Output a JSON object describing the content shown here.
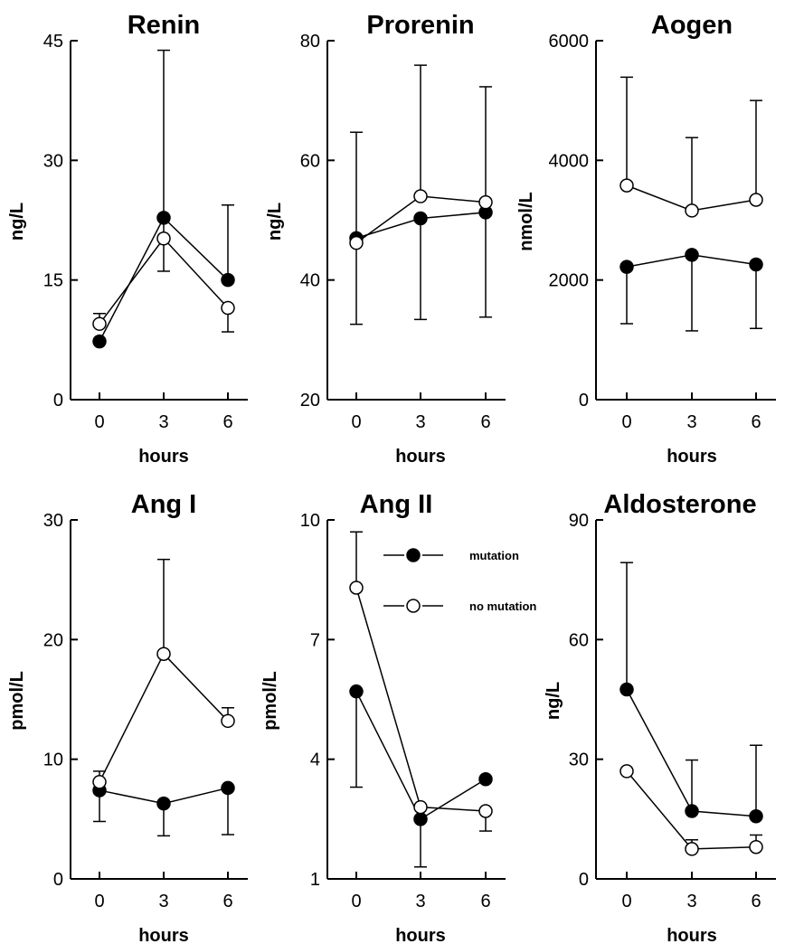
{
  "chart_data": [
    {
      "type": "line",
      "title": "Renin",
      "xlabel": "hours",
      "ylabel": "ng/L",
      "x": [
        0,
        3,
        6
      ],
      "xticks": [
        "0",
        "3",
        "6"
      ],
      "ylim": [
        0,
        45
      ],
      "yticks": [
        "0",
        "15",
        "30",
        "45"
      ],
      "series": [
        {
          "name": "mutation",
          "marker": "filled",
          "values": [
            7.3,
            22.8,
            15.0
          ],
          "err_upper": [
            null,
            null,
            24.4
          ],
          "err_lower": [
            null,
            null,
            null
          ]
        },
        {
          "name": "no mutation",
          "marker": "open",
          "values": [
            9.5,
            20.2,
            11.5
          ],
          "err_upper": [
            10.8,
            43.8,
            null
          ],
          "err_lower": [
            null,
            16.1,
            8.5
          ]
        }
      ]
    },
    {
      "type": "line",
      "title": "Prorenin",
      "xlabel": "hours",
      "ylabel": "ng/L",
      "x": [
        0,
        3,
        6
      ],
      "xticks": [
        "0",
        "3",
        "6"
      ],
      "ylim": [
        20,
        80
      ],
      "yticks": [
        "20",
        "40",
        "60",
        "80"
      ],
      "series": [
        {
          "name": "mutation",
          "marker": "filled",
          "values": [
            47.0,
            50.3,
            51.3
          ],
          "err_upper": [
            null,
            null,
            null
          ],
          "err_lower": [
            32.6,
            33.4,
            33.8
          ]
        },
        {
          "name": "no mutation",
          "marker": "open",
          "values": [
            46.2,
            54.0,
            53.0
          ],
          "err_upper": [
            64.7,
            75.9,
            72.3
          ],
          "err_lower": [
            null,
            null,
            null
          ]
        }
      ]
    },
    {
      "type": "line",
      "title": "Aogen",
      "xlabel": "hours",
      "ylabel": "nmol/L",
      "x": [
        0,
        3,
        6
      ],
      "xticks": [
        "0",
        "3",
        "6"
      ],
      "ylim": [
        0,
        6000
      ],
      "yticks": [
        "0",
        "2000",
        "4000",
        "6000"
      ],
      "series": [
        {
          "name": "mutation",
          "marker": "filled",
          "values": [
            2220,
            2420,
            2260
          ],
          "err_upper": [
            null,
            null,
            null
          ],
          "err_lower": [
            1270,
            1150,
            1190
          ]
        },
        {
          "name": "no mutation",
          "marker": "open",
          "values": [
            3580,
            3160,
            3340
          ],
          "err_upper": [
            5390,
            4380,
            5000
          ],
          "err_lower": [
            null,
            null,
            null
          ]
        }
      ]
    },
    {
      "type": "line",
      "title": "Ang I",
      "xlabel": "hours",
      "ylabel": "pmol/L",
      "x": [
        0,
        3,
        6
      ],
      "xticks": [
        "0",
        "3",
        "6"
      ],
      "ylim": [
        0,
        30
      ],
      "yticks": [
        "0",
        "10",
        "20",
        "30"
      ],
      "series": [
        {
          "name": "mutation",
          "marker": "filled",
          "values": [
            7.4,
            6.3,
            7.6
          ],
          "err_upper": [
            null,
            null,
            null
          ],
          "err_lower": [
            4.8,
            3.6,
            3.7
          ]
        },
        {
          "name": "no mutation",
          "marker": "open",
          "values": [
            8.1,
            18.8,
            13.2
          ],
          "err_upper": [
            9.0,
            26.7,
            14.3
          ],
          "err_lower": [
            null,
            null,
            null
          ]
        }
      ]
    },
    {
      "type": "line",
      "title": "Ang II",
      "xlabel": "hours",
      "ylabel": "pmol/L",
      "x": [
        0,
        3,
        6
      ],
      "xticks": [
        "0",
        "3",
        "6"
      ],
      "ylim": [
        1,
        10
      ],
      "yticks": [
        "1",
        "4",
        "7",
        "10"
      ],
      "series": [
        {
          "name": "mutation",
          "marker": "filled",
          "values": [
            5.7,
            2.5,
            3.5
          ],
          "err_upper": [
            null,
            null,
            null
          ],
          "err_lower": [
            3.3,
            1.3,
            null
          ]
        },
        {
          "name": "no mutation",
          "marker": "open",
          "values": [
            8.3,
            2.8,
            2.7
          ],
          "err_upper": [
            9.7,
            null,
            null
          ],
          "err_lower": [
            null,
            null,
            2.2
          ]
        }
      ],
      "legend": {
        "position": "top-right",
        "entries": [
          {
            "label": "mutation",
            "marker": "filled"
          },
          {
            "label": "no mutation",
            "marker": "open"
          }
        ]
      }
    },
    {
      "type": "line",
      "title": "Aldosterone",
      "xlabel": "hours",
      "ylabel": "ng/L",
      "x": [
        0,
        3,
        6
      ],
      "xticks": [
        "0",
        "3",
        "6"
      ],
      "ylim": [
        0,
        90
      ],
      "yticks": [
        "0",
        "30",
        "60",
        "90"
      ],
      "series": [
        {
          "name": "mutation",
          "marker": "filled",
          "values": [
            47.5,
            17.0,
            15.7
          ],
          "err_upper": [
            79.3,
            29.8,
            33.5
          ],
          "err_lower": [
            null,
            null,
            null
          ]
        },
        {
          "name": "no mutation",
          "marker": "open",
          "values": [
            27.0,
            7.5,
            8.0
          ],
          "err_upper": [
            null,
            9.8,
            11.0
          ],
          "err_lower": [
            null,
            null,
            null
          ]
        }
      ]
    }
  ]
}
